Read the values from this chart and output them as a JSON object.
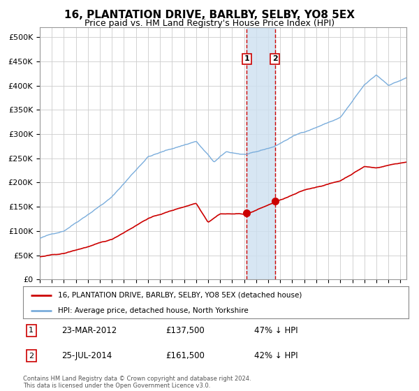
{
  "title": "16, PLANTATION DRIVE, BARLBY, SELBY, YO8 5EX",
  "subtitle": "Price paid vs. HM Land Registry's House Price Index (HPI)",
  "title_fontsize": 11,
  "subtitle_fontsize": 9,
  "ylabel_ticks": [
    "£0",
    "£50K",
    "£100K",
    "£150K",
    "£200K",
    "£250K",
    "£300K",
    "£350K",
    "£400K",
    "£450K",
    "£500K"
  ],
  "ylim": [
    0,
    520000
  ],
  "xlim_start": 1995.0,
  "xlim_end": 2025.5,
  "background_color": "#ffffff",
  "grid_color": "#cccccc",
  "hpi_line_color": "#7aaddc",
  "price_line_color": "#cc0000",
  "sale1_date_num": 2012.22,
  "sale2_date_num": 2014.56,
  "sale1_price": 137500,
  "sale2_price": 161500,
  "legend_label1": "16, PLANTATION DRIVE, BARLBY, SELBY, YO8 5EX (detached house)",
  "legend_label2": "HPI: Average price, detached house, North Yorkshire",
  "table_row1": [
    "1",
    "23-MAR-2012",
    "£137,500",
    "47% ↓ HPI"
  ],
  "table_row2": [
    "2",
    "25-JUL-2014",
    "£161,500",
    "42% ↓ HPI"
  ],
  "footnote": "Contains HM Land Registry data © Crown copyright and database right 2024.\nThis data is licensed under the Open Government Licence v3.0.",
  "shade_color": "#cde0f0",
  "dashed_line_color": "#cc0000"
}
